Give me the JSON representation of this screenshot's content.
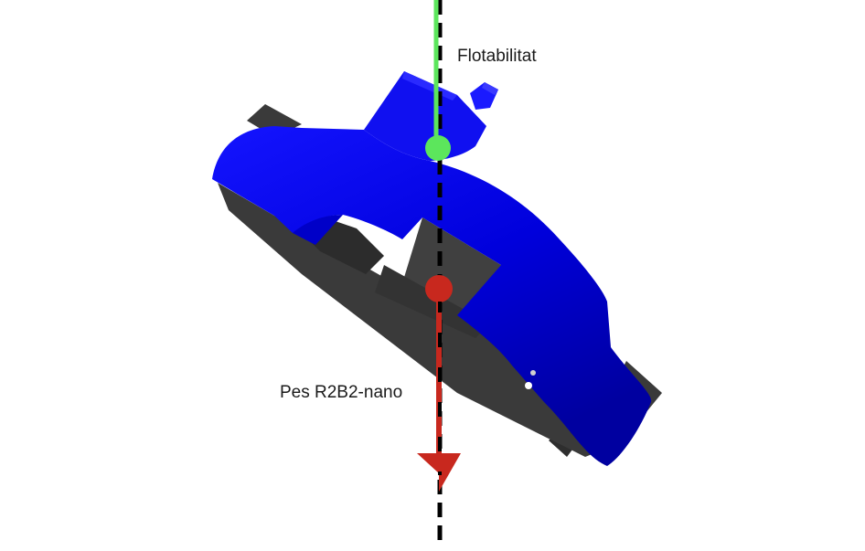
{
  "labels": {
    "buoyancy": "Flotabilitat",
    "weight": "Pes R2B2-nano"
  },
  "colors": {
    "hull": "#0a0ae6",
    "hull_shadow": "#0000a8",
    "parts": "#3a3a3a",
    "parts_dark": "#262626",
    "buoyancy_vector": "#5ce65c",
    "weight_vector": "#c8281e",
    "axis": "#000000"
  },
  "diagram": {
    "buoyancy_point": "centre of buoyancy",
    "gravity_point": "centre of gravity",
    "vertical_axis": "dashed vertical line"
  }
}
